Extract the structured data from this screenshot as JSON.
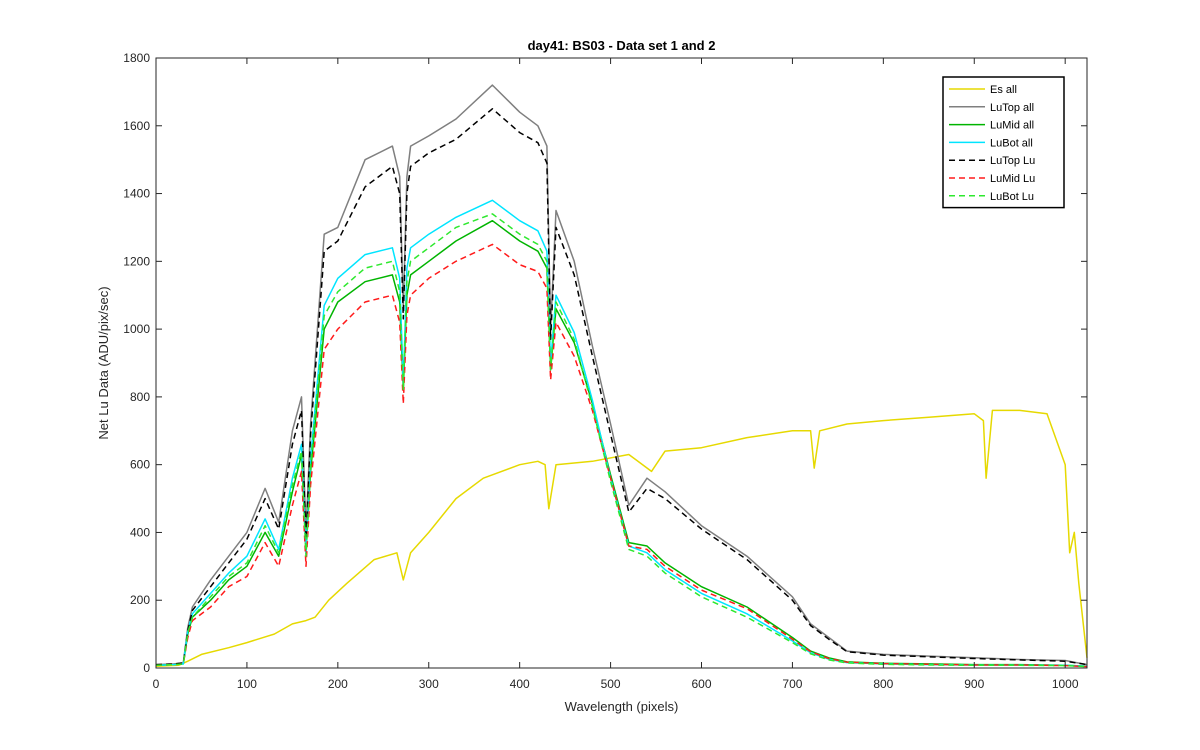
{
  "chart_data": {
    "type": "line",
    "title": "day41: BS03 - Data set 1 and 2",
    "xlabel": "Wavelength (pixels)",
    "ylabel": "Net Lu Data (ADU/pix/sec)",
    "xlim": [
      0,
      1024
    ],
    "ylim": [
      0,
      1800
    ],
    "xticks": [
      "0",
      "100",
      "200",
      "300",
      "400",
      "500",
      "600",
      "700",
      "800",
      "900",
      "1000"
    ],
    "yticks": [
      "0",
      "200",
      "400",
      "600",
      "800",
      "1000",
      "1200",
      "1400",
      "1600",
      "1800"
    ],
    "grid": false,
    "legend_position": "top-right",
    "series": [
      {
        "name": "Es  all",
        "color": "#e6d900",
        "dash": false,
        "x": [
          0,
          25,
          35,
          50,
          80,
          100,
          130,
          150,
          165,
          175,
          190,
          210,
          240,
          265,
          272,
          280,
          300,
          330,
          360,
          400,
          420,
          428,
          432,
          440,
          480,
          520,
          545,
          560,
          600,
          650,
          700,
          720,
          724,
          730,
          760,
          800,
          850,
          900,
          910,
          913,
          920,
          950,
          980,
          1000,
          1005,
          1010,
          1015,
          1024
        ],
        "y": [
          5,
          8,
          20,
          40,
          60,
          75,
          100,
          130,
          140,
          150,
          200,
          250,
          320,
          340,
          260,
          340,
          400,
          500,
          560,
          600,
          610,
          600,
          470,
          600,
          610,
          630,
          580,
          640,
          650,
          680,
          700,
          700,
          590,
          700,
          720,
          730,
          740,
          750,
          730,
          560,
          760,
          760,
          750,
          600,
          340,
          400,
          250,
          30
        ]
      },
      {
        "name": "LuTop  all",
        "color": "#7f7f7f",
        "dash": false,
        "x": [
          0,
          20,
          30,
          35,
          40,
          60,
          80,
          100,
          120,
          135,
          150,
          160,
          165,
          170,
          185,
          200,
          230,
          260,
          268,
          272,
          276,
          280,
          300,
          330,
          370,
          400,
          420,
          430,
          434,
          440,
          460,
          480,
          500,
          520,
          540,
          560,
          600,
          650,
          700,
          720,
          740,
          760,
          800,
          850,
          900,
          950,
          1000,
          1024
        ],
        "y": [
          10,
          12,
          15,
          120,
          180,
          260,
          330,
          400,
          530,
          430,
          700,
          800,
          400,
          720,
          1280,
          1300,
          1500,
          1540,
          1450,
          1060,
          1450,
          1540,
          1570,
          1620,
          1720,
          1640,
          1600,
          1540,
          1000,
          1350,
          1200,
          950,
          720,
          480,
          560,
          520,
          420,
          330,
          210,
          130,
          90,
          50,
          40,
          35,
          30,
          25,
          22,
          10
        ]
      },
      {
        "name": "LuMid  all",
        "color": "#00b400",
        "dash": false,
        "x": [
          0,
          20,
          30,
          35,
          40,
          60,
          80,
          100,
          120,
          135,
          150,
          160,
          165,
          170,
          185,
          200,
          230,
          260,
          268,
          272,
          276,
          280,
          300,
          330,
          370,
          400,
          420,
          430,
          434,
          440,
          460,
          480,
          500,
          520,
          540,
          560,
          600,
          650,
          700,
          720,
          740,
          760,
          800,
          850,
          900,
          950,
          1000,
          1024
        ],
        "y": [
          8,
          10,
          12,
          100,
          150,
          200,
          260,
          300,
          400,
          330,
          520,
          630,
          340,
          580,
          1000,
          1080,
          1140,
          1160,
          1080,
          820,
          1100,
          1160,
          1200,
          1260,
          1320,
          1260,
          1230,
          1180,
          880,
          1060,
          960,
          780,
          570,
          370,
          360,
          310,
          240,
          180,
          90,
          50,
          30,
          18,
          14,
          12,
          10,
          10,
          8,
          5
        ]
      },
      {
        "name": "LuBot  all",
        "color": "#00e5ff",
        "dash": false,
        "x": [
          0,
          20,
          30,
          35,
          40,
          60,
          80,
          100,
          120,
          135,
          150,
          160,
          165,
          170,
          185,
          200,
          230,
          260,
          268,
          272,
          276,
          280,
          300,
          330,
          370,
          400,
          420,
          430,
          434,
          440,
          460,
          480,
          500,
          520,
          540,
          560,
          600,
          650,
          700,
          720,
          740,
          760,
          800,
          850,
          900,
          950,
          1000,
          1024
        ],
        "y": [
          8,
          10,
          12,
          110,
          160,
          220,
          280,
          330,
          440,
          350,
          560,
          660,
          340,
          620,
          1070,
          1150,
          1220,
          1240,
          1150,
          840,
          1180,
          1240,
          1280,
          1330,
          1380,
          1320,
          1290,
          1230,
          900,
          1100,
          990,
          790,
          560,
          360,
          340,
          290,
          220,
          160,
          80,
          45,
          26,
          16,
          12,
          10,
          9,
          9,
          8,
          5
        ]
      },
      {
        "name": "LuTop  Lu",
        "color": "#000000",
        "dash": true,
        "x": [
          0,
          20,
          30,
          35,
          40,
          60,
          80,
          100,
          120,
          135,
          150,
          160,
          165,
          170,
          185,
          200,
          230,
          260,
          268,
          272,
          276,
          280,
          300,
          330,
          370,
          400,
          420,
          430,
          434,
          440,
          460,
          480,
          500,
          520,
          540,
          560,
          600,
          650,
          700,
          720,
          740,
          760,
          800,
          850,
          900,
          950,
          1000,
          1024
        ],
        "y": [
          10,
          12,
          15,
          110,
          170,
          240,
          310,
          380,
          500,
          410,
          660,
          760,
          380,
          690,
          1230,
          1260,
          1420,
          1480,
          1400,
          1030,
          1400,
          1480,
          1520,
          1560,
          1650,
          1580,
          1550,
          1490,
          970,
          1300,
          1160,
          920,
          690,
          460,
          530,
          500,
          410,
          320,
          200,
          125,
          85,
          48,
          38,
          33,
          28,
          24,
          20,
          10
        ]
      },
      {
        "name": "LuMid  Lu",
        "color": "#ff1a1a",
        "dash": true,
        "x": [
          0,
          20,
          30,
          35,
          40,
          60,
          80,
          100,
          120,
          135,
          150,
          160,
          165,
          170,
          185,
          200,
          230,
          260,
          268,
          272,
          276,
          280,
          300,
          330,
          370,
          400,
          420,
          430,
          434,
          440,
          460,
          480,
          500,
          520,
          540,
          560,
          600,
          650,
          700,
          720,
          740,
          760,
          800,
          850,
          900,
          950,
          1000,
          1024
        ],
        "y": [
          8,
          10,
          12,
          90,
          140,
          180,
          240,
          270,
          370,
          300,
          480,
          580,
          300,
          540,
          940,
          1000,
          1080,
          1100,
          1020,
          780,
          1040,
          1100,
          1150,
          1200,
          1250,
          1190,
          1170,
          1120,
          850,
          1020,
          920,
          760,
          560,
          360,
          350,
          300,
          230,
          175,
          85,
          48,
          28,
          17,
          13,
          11,
          9,
          9,
          7,
          4
        ]
      },
      {
        "name": "LuBot  Lu",
        "color": "#2ee82e",
        "dash": true,
        "x": [
          0,
          20,
          30,
          35,
          40,
          60,
          80,
          100,
          120,
          135,
          150,
          160,
          165,
          170,
          185,
          200,
          230,
          260,
          268,
          272,
          276,
          280,
          300,
          330,
          370,
          400,
          420,
          430,
          434,
          440,
          460,
          480,
          500,
          520,
          540,
          560,
          600,
          650,
          700,
          720,
          740,
          760,
          800,
          850,
          900,
          950,
          1000,
          1024
        ],
        "y": [
          8,
          10,
          12,
          105,
          150,
          210,
          270,
          310,
          420,
          340,
          540,
          640,
          330,
          600,
          1040,
          1110,
          1180,
          1200,
          1110,
          820,
          1140,
          1200,
          1240,
          1300,
          1340,
          1280,
          1250,
          1200,
          880,
          1080,
          970,
          770,
          550,
          350,
          330,
          280,
          210,
          150,
          75,
          42,
          24,
          15,
          11,
          9,
          8,
          8,
          7,
          4
        ]
      }
    ]
  }
}
